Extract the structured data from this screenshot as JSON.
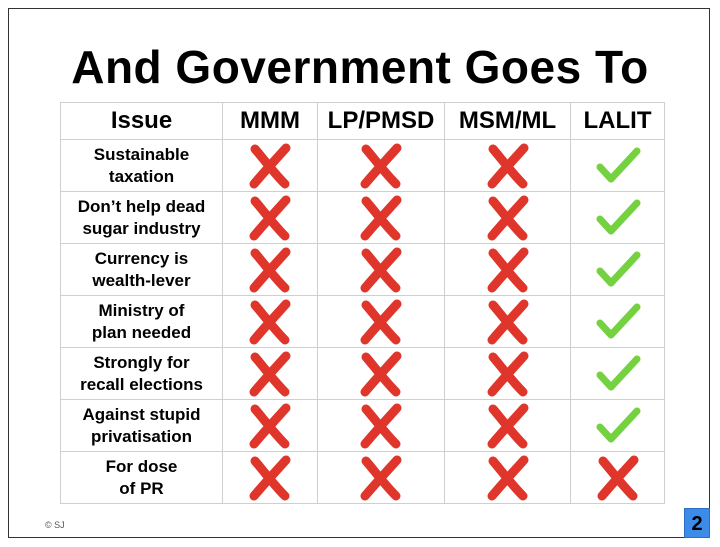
{
  "title": "And Government Goes To",
  "table": {
    "headers": [
      "Issue",
      "MMM",
      "LP/PMSD",
      "MSM/ML",
      "LALIT"
    ],
    "rows": [
      {
        "issue": "Sustainable\ntaxation",
        "marks": [
          "cross",
          "cross",
          "cross",
          "check"
        ]
      },
      {
        "issue": "Don’t help dead\nsugar industry",
        "marks": [
          "cross",
          "cross",
          "cross",
          "check"
        ]
      },
      {
        "issue": "Currency is\nwealth-lever",
        "marks": [
          "cross",
          "cross",
          "cross",
          "check"
        ]
      },
      {
        "issue": "Ministry of\nplan needed",
        "marks": [
          "cross",
          "cross",
          "cross",
          "check"
        ]
      },
      {
        "issue": "Strongly for\nrecall elections",
        "marks": [
          "cross",
          "cross",
          "cross",
          "check"
        ]
      },
      {
        "issue": "Against stupid\nprivatisation",
        "marks": [
          "cross",
          "cross",
          "cross",
          "check"
        ]
      },
      {
        "issue": "For dose\nof PR",
        "marks": [
          "cross",
          "cross",
          "cross",
          "cross"
        ]
      }
    ]
  },
  "colors": {
    "cross": "#e0352b",
    "check": "#74d13f",
    "page_badge": "#3d8be8"
  },
  "footer": {
    "copyright": "© SJ",
    "page_number": "2"
  }
}
